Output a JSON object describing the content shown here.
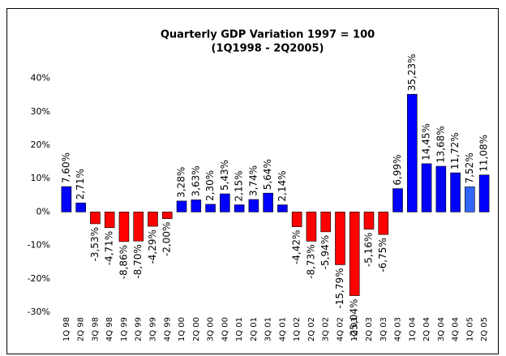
{
  "chart_data": {
    "type": "bar",
    "title": [
      "Quarterly GDP Variation 1997 = 100",
      "(1Q1998 - 2Q2005)"
    ],
    "categories": [
      "1Q 98",
      "2Q 98",
      "3Q 98",
      "4Q 98",
      "1Q 99",
      "2Q 99",
      "3Q 99",
      "4Q 99",
      "1Q 00",
      "2Q 00",
      "3Q 00",
      "4Q 00",
      "1Q 01",
      "2Q 01",
      "3Q 01",
      "4Q 01",
      "1Q 02",
      "2Q 02",
      "3Q 02",
      "4Q 02",
      "1Q 03",
      "2Q 03",
      "3Q 03",
      "4Q 03",
      "1Q 04",
      "2Q 04",
      "3Q 04",
      "4Q 04",
      "1Q 05",
      "2Q 05"
    ],
    "values": [
      7.6,
      2.71,
      -3.53,
      -4.71,
      -8.86,
      -8.7,
      -4.29,
      -2.0,
      3.28,
      3.63,
      2.3,
      5.43,
      2.15,
      3.74,
      5.64,
      2.14,
      -4.42,
      -8.73,
      -5.94,
      -15.79,
      -25.04,
      -5.16,
      -6.75,
      6.99,
      35.23,
      14.45,
      13.68,
      11.72,
      7.52,
      11.08
    ],
    "value_labels": [
      "7,60%",
      "2,71%",
      "-3,53%",
      "-4,71%",
      "-8,86%",
      "-8,70%",
      "-4,29%",
      "-2,00%",
      "3,28%",
      "3,63%",
      "2,30%",
      "5,43%",
      "2,15%",
      "3,74%",
      "5,64%",
      "2,14%",
      "-4,42%",
      "-8,73%",
      "-5,94%",
      "-15,79%",
      "-25,04%",
      "-5,16%",
      "-6,75%",
      "6,99%",
      "35,23%",
      "14,45%",
      "13,68%",
      "11,72%",
      "7,52%",
      "11,08%"
    ],
    "colors": [
      "#0000ff",
      "#0000ff",
      "#ff0000",
      "#ff0000",
      "#ff0000",
      "#ff0000",
      "#ff0000",
      "#ff0000",
      "#0000ff",
      "#0000ff",
      "#0000ff",
      "#0000ff",
      "#0000ff",
      "#0000ff",
      "#0000ff",
      "#0000ff",
      "#ff0000",
      "#ff0000",
      "#ff0000",
      "#ff0000",
      "#ff0000",
      "#ff0000",
      "#ff0000",
      "#0000ff",
      "#0000ff",
      "#0000ff",
      "#0000ff",
      "#0000ff",
      "#3366ff",
      "#0000ff"
    ],
    "ylim": [
      -30,
      45
    ],
    "yticks": [
      {
        "value": -30,
        "label": "-30%"
      },
      {
        "value": -20,
        "label": "-20%"
      },
      {
        "value": -10,
        "label": "-10%"
      },
      {
        "value": 0,
        "label": "0%"
      },
      {
        "value": 10,
        "label": "10%"
      },
      {
        "value": 20,
        "label": "20%"
      },
      {
        "value": 30,
        "label": "30%"
      },
      {
        "value": 40,
        "label": "40%"
      }
    ]
  }
}
